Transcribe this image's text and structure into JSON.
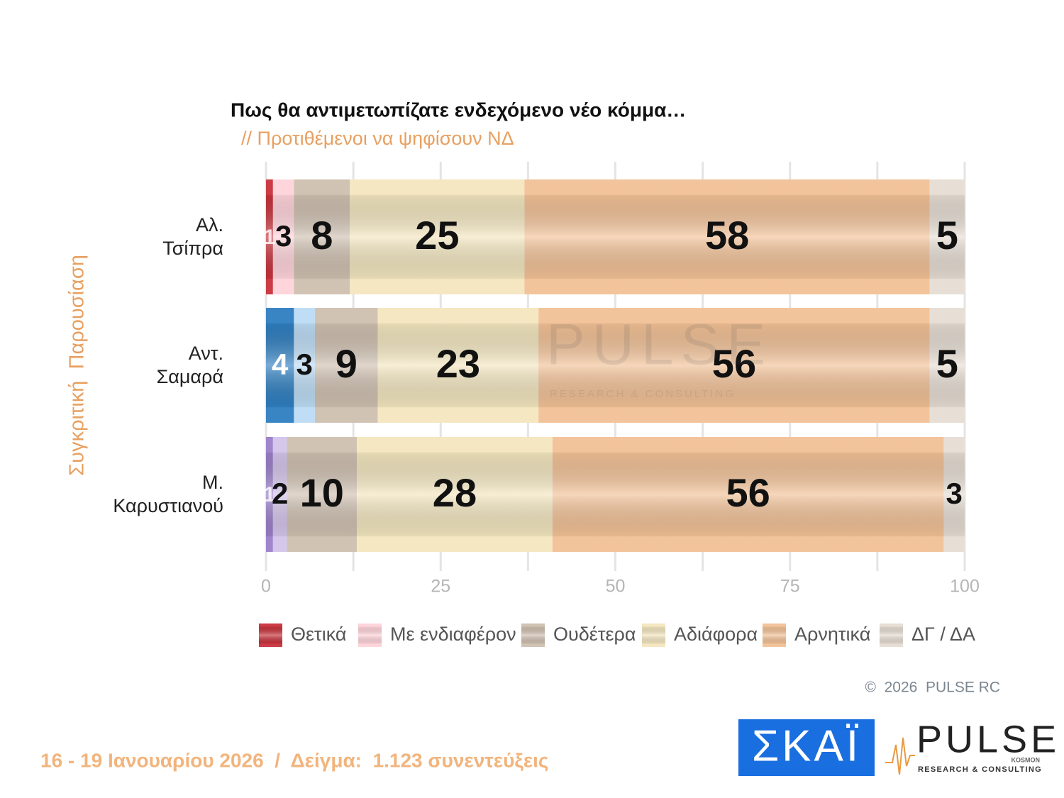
{
  "chart_data": {
    "type": "stacked-barh",
    "title": "Πως θα αντιμετωπίζατε ενδεχόμενο νέο κόμμα…",
    "subtitle": "// Προτιθέμενοι να ψηφίσουν ΝΔ",
    "y_label": "Συγκριτική  Παρουσίαση",
    "categories": [
      "Αλ.\nΤσίπρα",
      "Αντ.\nΣαμαρά",
      "Μ.\nΚαρυστιανού"
    ],
    "series": [
      {
        "name": "Θετικά",
        "color": "#c8323c",
        "colors": [
          "#c8323c",
          "#2f7fc1",
          "#9b7fc9"
        ],
        "values": [
          1,
          4,
          1
        ]
      },
      {
        "name": "Με ενδιαφέρον",
        "color": "#ffd3da",
        "colors": [
          "#ffd3da",
          "#bcdcf5",
          "#d3c4ea"
        ],
        "values": [
          3,
          3,
          2
        ]
      },
      {
        "name": "Ουδέτερα",
        "color": "#cfc0b0",
        "values": [
          8,
          9,
          10
        ]
      },
      {
        "name": "Αδιάφορα",
        "color": "#f3e6bf",
        "values": [
          25,
          23,
          28
        ]
      },
      {
        "name": "Αρνητικά",
        "color": "#f2c196",
        "values": [
          58,
          56,
          56
        ]
      },
      {
        "name": "ΔΓ / ΔΑ",
        "color": "#e6ddd3",
        "values": [
          5,
          5,
          3
        ]
      }
    ],
    "xlim": [
      0,
      100
    ],
    "xticks": [
      0,
      25,
      50,
      75,
      100
    ],
    "xminor": [
      12.5,
      37.5,
      62.5,
      87.5
    ],
    "grid": true,
    "legend": "bottom"
  },
  "watermark": {
    "name": "PULSE",
    "tagline": "RESEARCH & CONSULTING"
  },
  "copyright": "©  2026  PULSE RC",
  "footer": "16 - 19 Ιανουαρίου 2026  /  Δείγμα:  1.123 συνεντεύξεις",
  "logos": {
    "skai": "ΣΚΑΪ",
    "pulse": "PULSE",
    "pulse_small": "KOSMON",
    "pulse_tagline": "RESEARCH & CONSULTING"
  }
}
